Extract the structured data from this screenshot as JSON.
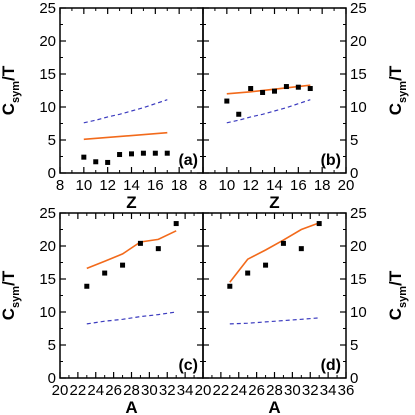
{
  "figure": {
    "ylabel_main": "C",
    "ylabel_sub": "sym",
    "ylabel_tail": "/T",
    "colors": {
      "solid": "#f26a1b",
      "dashed": "#3b3bbf",
      "points": "#000000",
      "frame": "#000000"
    }
  },
  "chart_data": [
    {
      "type": "line",
      "panel_label": "(a)",
      "xlabel": "Z",
      "ylabel": "C_sym/T",
      "xlim": [
        8,
        20
      ],
      "ylim": [
        0,
        25
      ],
      "xticks": [
        8,
        10,
        12,
        14,
        16,
        18
      ],
      "yticks": [
        0,
        5,
        10,
        15,
        20,
        25
      ],
      "series": [
        {
          "style": "solid",
          "x": [
            10,
            17
          ],
          "y": [
            5.1,
            6.1
          ]
        },
        {
          "style": "dashed",
          "x": [
            10,
            11,
            12,
            13,
            14,
            15,
            16,
            17
          ],
          "y": [
            7.6,
            8.0,
            8.5,
            8.9,
            9.4,
            9.9,
            10.5,
            11.1
          ]
        },
        {
          "style": "points",
          "x": [
            10,
            11,
            12,
            13,
            14,
            15,
            16,
            17
          ],
          "y": [
            2.4,
            1.7,
            1.6,
            2.8,
            2.9,
            3.0,
            3.0,
            3.0
          ]
        }
      ]
    },
    {
      "type": "line",
      "panel_label": "(b)",
      "xlabel": "Z",
      "ylabel": "C_sym/T",
      "xlim": [
        8,
        20
      ],
      "ylim": [
        0,
        25
      ],
      "xticks": [
        8,
        10,
        12,
        14,
        16,
        18,
        20
      ],
      "yticks": [
        0,
        5,
        10,
        15,
        20,
        25
      ],
      "series": [
        {
          "style": "solid",
          "x": [
            10,
            12,
            14,
            17
          ],
          "y": [
            12.0,
            12.3,
            12.7,
            13.3
          ]
        },
        {
          "style": "dashed",
          "x": [
            10,
            11,
            12,
            13,
            14,
            15,
            16,
            17
          ],
          "y": [
            7.6,
            8.0,
            8.5,
            8.9,
            9.4,
            9.9,
            10.5,
            11.1
          ]
        },
        {
          "style": "points",
          "x": [
            10,
            11,
            12,
            13,
            14,
            15,
            16,
            17
          ],
          "y": [
            10.9,
            8.9,
            12.8,
            12.2,
            12.4,
            13.1,
            13.0,
            12.8
          ]
        }
      ]
    },
    {
      "type": "line",
      "panel_label": "(c)",
      "xlabel": "A",
      "ylabel": "C_sym/T",
      "xlim": [
        20,
        36
      ],
      "ylim": [
        0,
        25
      ],
      "xticks": [
        20,
        22,
        24,
        26,
        28,
        30,
        32,
        34
      ],
      "yticks": [
        0,
        5,
        10,
        15,
        20,
        25
      ],
      "series": [
        {
          "style": "solid",
          "x": [
            23,
            25,
            27,
            29,
            31,
            33
          ],
          "y": [
            16.6,
            17.7,
            18.8,
            20.6,
            21.0,
            22.3
          ]
        },
        {
          "style": "dashed",
          "x": [
            23,
            25,
            27,
            29,
            31,
            33
          ],
          "y": [
            8.2,
            8.6,
            8.9,
            9.3,
            9.6,
            10.0
          ]
        },
        {
          "style": "points",
          "x": [
            23,
            25,
            27,
            29,
            31,
            33
          ],
          "y": [
            13.9,
            15.9,
            17.1,
            20.4,
            19.6,
            23.4
          ]
        }
      ]
    },
    {
      "type": "line",
      "panel_label": "(d)",
      "xlabel": "A",
      "ylabel": "C_sym/T",
      "xlim": [
        20,
        36
      ],
      "ylim": [
        0,
        25
      ],
      "xticks": [
        20,
        22,
        24,
        26,
        28,
        30,
        32,
        34,
        36
      ],
      "yticks": [
        0,
        5,
        10,
        15,
        20,
        25
      ],
      "series": [
        {
          "style": "solid",
          "x": [
            23,
            25,
            27,
            29,
            31,
            33
          ],
          "y": [
            14.5,
            18.0,
            19.4,
            20.9,
            22.5,
            23.5
          ]
        },
        {
          "style": "dashed",
          "x": [
            23,
            25,
            27,
            29,
            31,
            33
          ],
          "y": [
            8.2,
            8.3,
            8.5,
            8.7,
            8.9,
            9.1
          ]
        },
        {
          "style": "points",
          "x": [
            23,
            25,
            27,
            29,
            31,
            33
          ],
          "y": [
            13.9,
            15.9,
            17.1,
            20.4,
            19.6,
            23.4
          ]
        }
      ]
    }
  ]
}
